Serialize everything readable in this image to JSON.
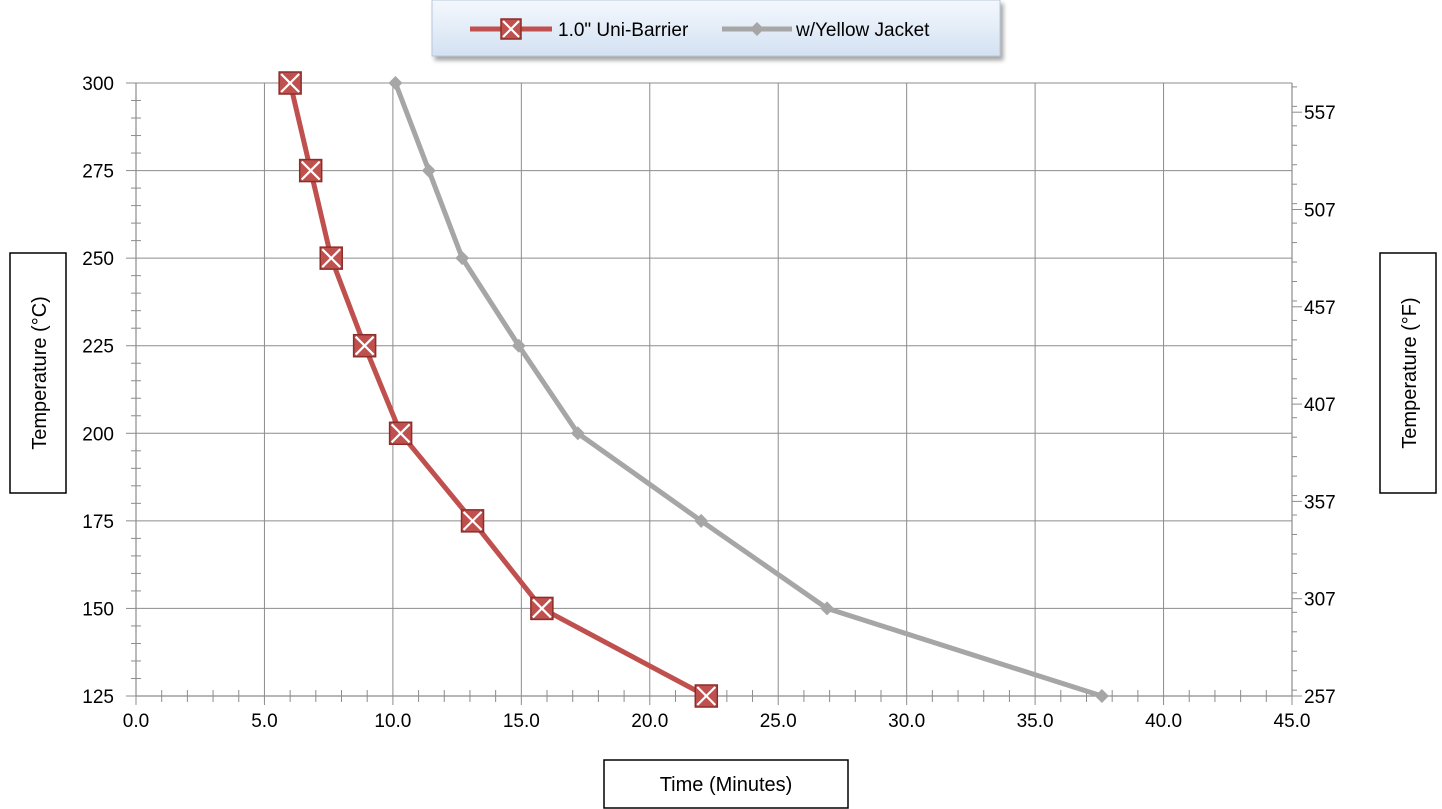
{
  "chart_data": {
    "type": "line",
    "xlabel": "Time (Minutes)",
    "ylabel": "Temperature (°C)",
    "ylabel_right": "Temperature (°F)",
    "xlim": [
      0,
      45
    ],
    "ylim": [
      125,
      300
    ],
    "x_ticks": [
      "0.0",
      "5.0",
      "10.0",
      "15.0",
      "20.0",
      "25.0",
      "30.0",
      "35.0",
      "40.0",
      "45.0"
    ],
    "y_ticks": [
      "125",
      "150",
      "175",
      "200",
      "225",
      "250",
      "275",
      "300"
    ],
    "y_right_ticks": [
      "257",
      "307",
      "357",
      "407",
      "457",
      "507",
      "557"
    ],
    "grid": true,
    "legend_position": "top-center",
    "series": [
      {
        "name": "1.0\" Uni-Barrier",
        "color": "#C0504D",
        "marker": "x-square",
        "x": [
          6.0,
          6.8,
          7.6,
          8.9,
          10.3,
          13.1,
          15.8,
          22.2
        ],
        "y": [
          300,
          275,
          250,
          225,
          200,
          175,
          150,
          125
        ]
      },
      {
        "name": "w/Yellow Jacket",
        "color": "#A6A6A6",
        "marker": "diamond",
        "x": [
          10.1,
          11.4,
          12.7,
          14.9,
          17.2,
          22.0,
          26.9,
          37.6
        ],
        "y": [
          300,
          275,
          250,
          225,
          200,
          175,
          150,
          125
        ]
      }
    ]
  }
}
